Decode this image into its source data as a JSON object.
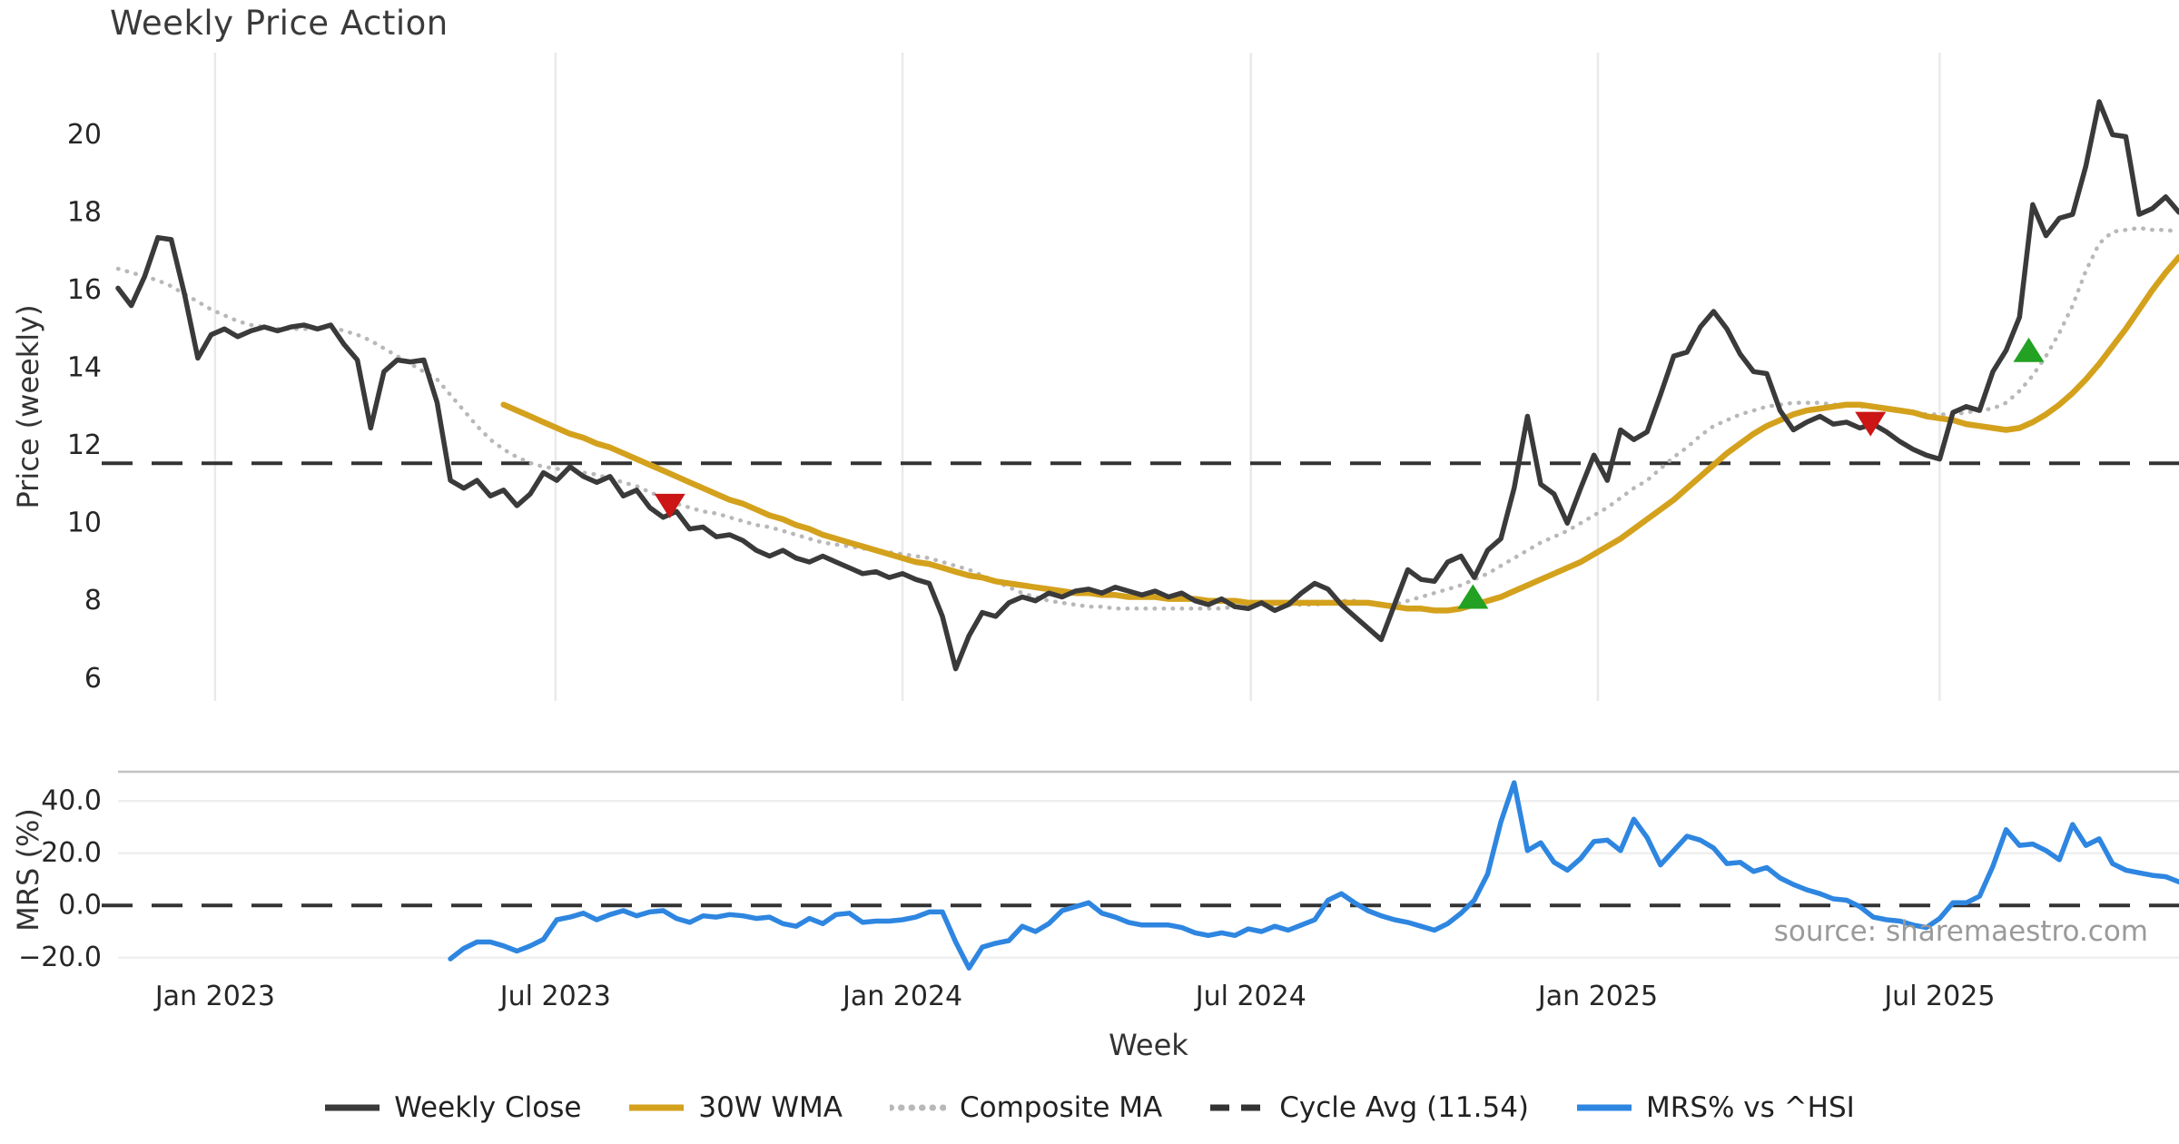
{
  "title": "Weekly Price Action",
  "source": "source: sharemaestro.com",
  "colors": {
    "weekly_close": "#3a3a3a",
    "wma_30w": "#d4a11d",
    "composite_ma": "#b8b8b8",
    "cycle_avg": "#333333",
    "mrs_line": "#2e86e0",
    "buy_marker": "#22a122",
    "sell_marker": "#cc1515",
    "grid": "#eaeaea",
    "panel_spine": "#c2c2c2",
    "tick_text": "#262626",
    "axis_label_text": "#333333",
    "source_text": "#9a9a9a"
  },
  "x_axis": {
    "label": "Week",
    "unit": "weekly bars, mid-Nov 2022 through early Nov 2025",
    "ticks": [
      {
        "label": "Jan 2023",
        "week": 7.3
      },
      {
        "label": "Jul 2023",
        "week": 32.9
      },
      {
        "label": "Jan 2024",
        "week": 59.0
      },
      {
        "label": "Jul 2024",
        "week": 85.2
      },
      {
        "label": "Jan 2025",
        "week": 111.3
      },
      {
        "label": "Jul 2025",
        "week": 137.0
      }
    ]
  },
  "legend": {
    "items": [
      {
        "label": "Weekly Close",
        "color": "#3a3a3a",
        "dash": "solid"
      },
      {
        "label": "30W WMA",
        "color": "#d4a11d",
        "dash": "solid"
      },
      {
        "label": "Composite MA",
        "color": "#b8b8b8",
        "dash": "dotted"
      },
      {
        "label": "Cycle Avg (11.54)",
        "color": "#333333",
        "dash": "dashed"
      },
      {
        "label": "MRS% vs ^HSI",
        "color": "#2e86e0",
        "dash": "solid"
      }
    ]
  },
  "chart_data": [
    {
      "type": "line",
      "panel": "price",
      "title": "Weekly Price Action",
      "xlabel": "Week",
      "ylabel": "Price (weekly)",
      "ylim": [
        5.4,
        21.5
      ],
      "y_ticks": [
        6,
        8,
        10,
        12,
        14,
        16,
        18,
        20
      ],
      "grid": "vertical-only",
      "cycle_avg_value": 11.54,
      "series": [
        {
          "name": "Weekly Close",
          "style": "solid",
          "color": "#3a3a3a",
          "start_week": 0,
          "values": [
            16.05,
            15.6,
            16.35,
            17.35,
            17.3,
            15.9,
            14.25,
            14.85,
            15.0,
            14.8,
            14.95,
            15.05,
            14.95,
            15.05,
            15.1,
            15.0,
            15.1,
            14.6,
            14.2,
            12.45,
            13.9,
            14.2,
            14.15,
            14.2,
            13.1,
            11.1,
            10.9,
            11.1,
            10.7,
            10.85,
            10.45,
            10.75,
            11.3,
            11.1,
            11.45,
            11.2,
            11.05,
            11.2,
            10.7,
            10.85,
            10.4,
            10.15,
            10.3,
            9.85,
            9.9,
            9.65,
            9.7,
            9.55,
            9.3,
            9.15,
            9.3,
            9.1,
            9.0,
            9.15,
            9.0,
            8.85,
            8.7,
            8.75,
            8.6,
            8.7,
            8.55,
            8.45,
            7.6,
            6.25,
            7.1,
            7.7,
            7.6,
            7.95,
            8.1,
            8.0,
            8.2,
            8.1,
            8.25,
            8.3,
            8.2,
            8.35,
            8.25,
            8.15,
            8.25,
            8.1,
            8.2,
            8.0,
            7.9,
            8.05,
            7.85,
            7.8,
            7.95,
            7.75,
            7.9,
            8.2,
            8.45,
            8.3,
            7.9,
            7.6,
            7.3,
            7.0,
            7.9,
            8.8,
            8.55,
            8.5,
            9.0,
            9.15,
            8.6,
            9.3,
            9.6,
            10.9,
            12.75,
            11.0,
            10.75,
            10.0,
            10.9,
            11.75,
            11.1,
            12.4,
            12.15,
            12.35,
            13.3,
            14.3,
            14.4,
            15.05,
            15.45,
            15.0,
            14.35,
            13.9,
            13.85,
            12.9,
            12.4,
            12.6,
            12.75,
            12.55,
            12.6,
            12.45,
            12.55,
            12.35,
            12.1,
            11.9,
            11.75,
            11.65,
            12.85,
            13.0,
            12.9,
            13.9,
            14.45,
            15.3,
            18.2,
            17.4,
            17.85,
            17.95,
            19.2,
            20.85,
            20.0,
            19.95,
            17.95,
            18.1,
            18.4,
            18.0
          ]
        },
        {
          "name": "30W WMA",
          "style": "solid",
          "color": "#d4a11d",
          "start_week": 29,
          "values": [
            13.05,
            12.9,
            12.75,
            12.6,
            12.45,
            12.3,
            12.2,
            12.05,
            11.95,
            11.8,
            11.65,
            11.5,
            11.35,
            11.2,
            11.05,
            10.9,
            10.75,
            10.6,
            10.5,
            10.35,
            10.2,
            10.1,
            9.95,
            9.85,
            9.7,
            9.6,
            9.5,
            9.4,
            9.3,
            9.2,
            9.1,
            9.0,
            8.95,
            8.85,
            8.75,
            8.65,
            8.6,
            8.5,
            8.45,
            8.4,
            8.35,
            8.3,
            8.25,
            8.2,
            8.2,
            8.15,
            8.15,
            8.1,
            8.1,
            8.1,
            8.05,
            8.05,
            8.05,
            8.0,
            8.0,
            8.0,
            7.95,
            7.95,
            7.95,
            7.95,
            7.95,
            7.95,
            7.95,
            7.95,
            7.95,
            7.95,
            7.9,
            7.85,
            7.8,
            7.8,
            7.75,
            7.75,
            7.8,
            7.9,
            8.0,
            8.1,
            8.25,
            8.4,
            8.55,
            8.7,
            8.85,
            9.0,
            9.2,
            9.4,
            9.6,
            9.85,
            10.1,
            10.35,
            10.6,
            10.9,
            11.2,
            11.5,
            11.8,
            12.05,
            12.3,
            12.5,
            12.65,
            12.8,
            12.9,
            12.95,
            13.0,
            13.05,
            13.05,
            13.0,
            12.95,
            12.9,
            12.85,
            12.75,
            12.7,
            12.65,
            12.55,
            12.5,
            12.45,
            12.4,
            12.45,
            12.6,
            12.8,
            13.05,
            13.35,
            13.7,
            14.1,
            14.55,
            15.0,
            15.5,
            16.0,
            16.45,
            16.85
          ]
        },
        {
          "name": "Composite MA",
          "style": "dotted",
          "color": "#b8b8b8",
          "start_week": 0,
          "values": [
            16.55,
            16.45,
            16.35,
            16.25,
            16.1,
            15.9,
            15.7,
            15.5,
            15.35,
            15.2,
            15.1,
            15.05,
            15.0,
            15.0,
            15.0,
            15.0,
            15.05,
            14.95,
            14.85,
            14.7,
            14.5,
            14.3,
            14.1,
            13.9,
            13.7,
            13.3,
            12.9,
            12.5,
            12.15,
            11.9,
            11.7,
            11.55,
            11.45,
            11.4,
            11.35,
            11.3,
            11.25,
            11.15,
            11.05,
            10.95,
            10.8,
            10.65,
            10.5,
            10.4,
            10.3,
            10.25,
            10.15,
            10.05,
            9.95,
            9.9,
            9.8,
            9.7,
            9.6,
            9.5,
            9.45,
            9.4,
            9.35,
            9.3,
            9.25,
            9.2,
            9.15,
            9.1,
            9.0,
            8.9,
            8.8,
            8.65,
            8.5,
            8.35,
            8.2,
            8.1,
            8.0,
            7.95,
            7.9,
            7.85,
            7.85,
            7.8,
            7.8,
            7.8,
            7.8,
            7.8,
            7.8,
            7.8,
            7.8,
            7.8,
            7.85,
            7.85,
            7.9,
            7.9,
            7.9,
            7.9,
            7.9,
            7.95,
            8.0,
            8.0,
            7.95,
            7.9,
            7.9,
            8.0,
            8.1,
            8.2,
            8.3,
            8.4,
            8.55,
            8.7,
            8.9,
            9.1,
            9.3,
            9.5,
            9.65,
            9.8,
            10.0,
            10.2,
            10.4,
            10.65,
            10.9,
            11.1,
            11.4,
            11.7,
            11.95,
            12.25,
            12.5,
            12.65,
            12.8,
            12.9,
            13.0,
            13.05,
            13.1,
            13.1,
            13.1,
            13.05,
            13.05,
            13.0,
            13.0,
            12.95,
            12.9,
            12.85,
            12.8,
            12.8,
            12.8,
            12.85,
            12.9,
            12.95,
            13.1,
            13.4,
            13.8,
            14.3,
            14.9,
            15.6,
            16.5,
            17.2,
            17.5,
            17.55,
            17.6,
            17.55,
            17.55,
            17.5
          ]
        },
        {
          "name": "Cycle Avg (11.54)",
          "style": "dashed",
          "color": "#333333",
          "constant": 11.54
        }
      ],
      "markers": {
        "sell": [
          {
            "week": 41.5,
            "price": 10.45
          },
          {
            "week": 131.8,
            "price": 12.56
          }
        ],
        "buy": [
          {
            "week": 101.9,
            "price": 8.1
          },
          {
            "week": 143.7,
            "price": 14.45
          }
        ]
      }
    },
    {
      "type": "line",
      "panel": "relative-strength",
      "ylabel": "MRS (%)",
      "ylim": [
        -24,
        51.2
      ],
      "y_ticks": [
        {
          "label": "40.0",
          "value": 40
        },
        {
          "label": "20.0",
          "value": 20
        },
        {
          "label": "0.0",
          "value": 0
        },
        {
          "label": "−20.0",
          "value": -20
        }
      ],
      "zero_line": "dashed",
      "series": [
        {
          "name": "MRS% vs ^HSI",
          "style": "solid",
          "color": "#2e86e0",
          "start_week": 25,
          "values": [
            -20.5,
            -16.5,
            -14,
            -14,
            -15.5,
            -17.5,
            -15.5,
            -13,
            -5.5,
            -4.5,
            -3,
            -5.5,
            -3.5,
            -2,
            -4,
            -2.5,
            -2,
            -5,
            -6.5,
            -4,
            -4.5,
            -3.5,
            -4,
            -5,
            -4.5,
            -7,
            -8,
            -5,
            -7,
            -3.5,
            -3,
            -6.5,
            -6,
            -6,
            -5.5,
            -4.5,
            -2.5,
            -2.5,
            -14,
            -24,
            -16,
            -14.5,
            -13.5,
            -8,
            -10,
            -7,
            -2,
            -0.5,
            1,
            -3,
            -4.5,
            -6.5,
            -7.5,
            -7.5,
            -7.5,
            -8.5,
            -10.5,
            -11.5,
            -10.5,
            -11.5,
            -9,
            -10,
            -8,
            -9.5,
            -7.5,
            -5.5,
            2,
            4.5,
            1,
            -2,
            -4,
            -5.5,
            -6.5,
            -8,
            -9.5,
            -7,
            -3,
            2,
            12,
            32,
            47,
            21,
            24,
            16.5,
            13.5,
            18,
            24.5,
            25,
            21,
            33,
            26,
            15.5,
            21,
            26.5,
            25,
            22,
            16,
            16.5,
            13,
            14.5,
            10.5,
            8,
            6,
            4.5,
            2.5,
            2,
            -0.5,
            -4.5,
            -5.5,
            -6,
            -7.5,
            -8.5,
            -5,
            1,
            1,
            3.5,
            15,
            29,
            23,
            23.5,
            21,
            17.5,
            31,
            23,
            25.5,
            16,
            13.5,
            12.5,
            11.5,
            11,
            9
          ]
        }
      ],
      "annotation": "source: sharemaestro.com"
    }
  ]
}
